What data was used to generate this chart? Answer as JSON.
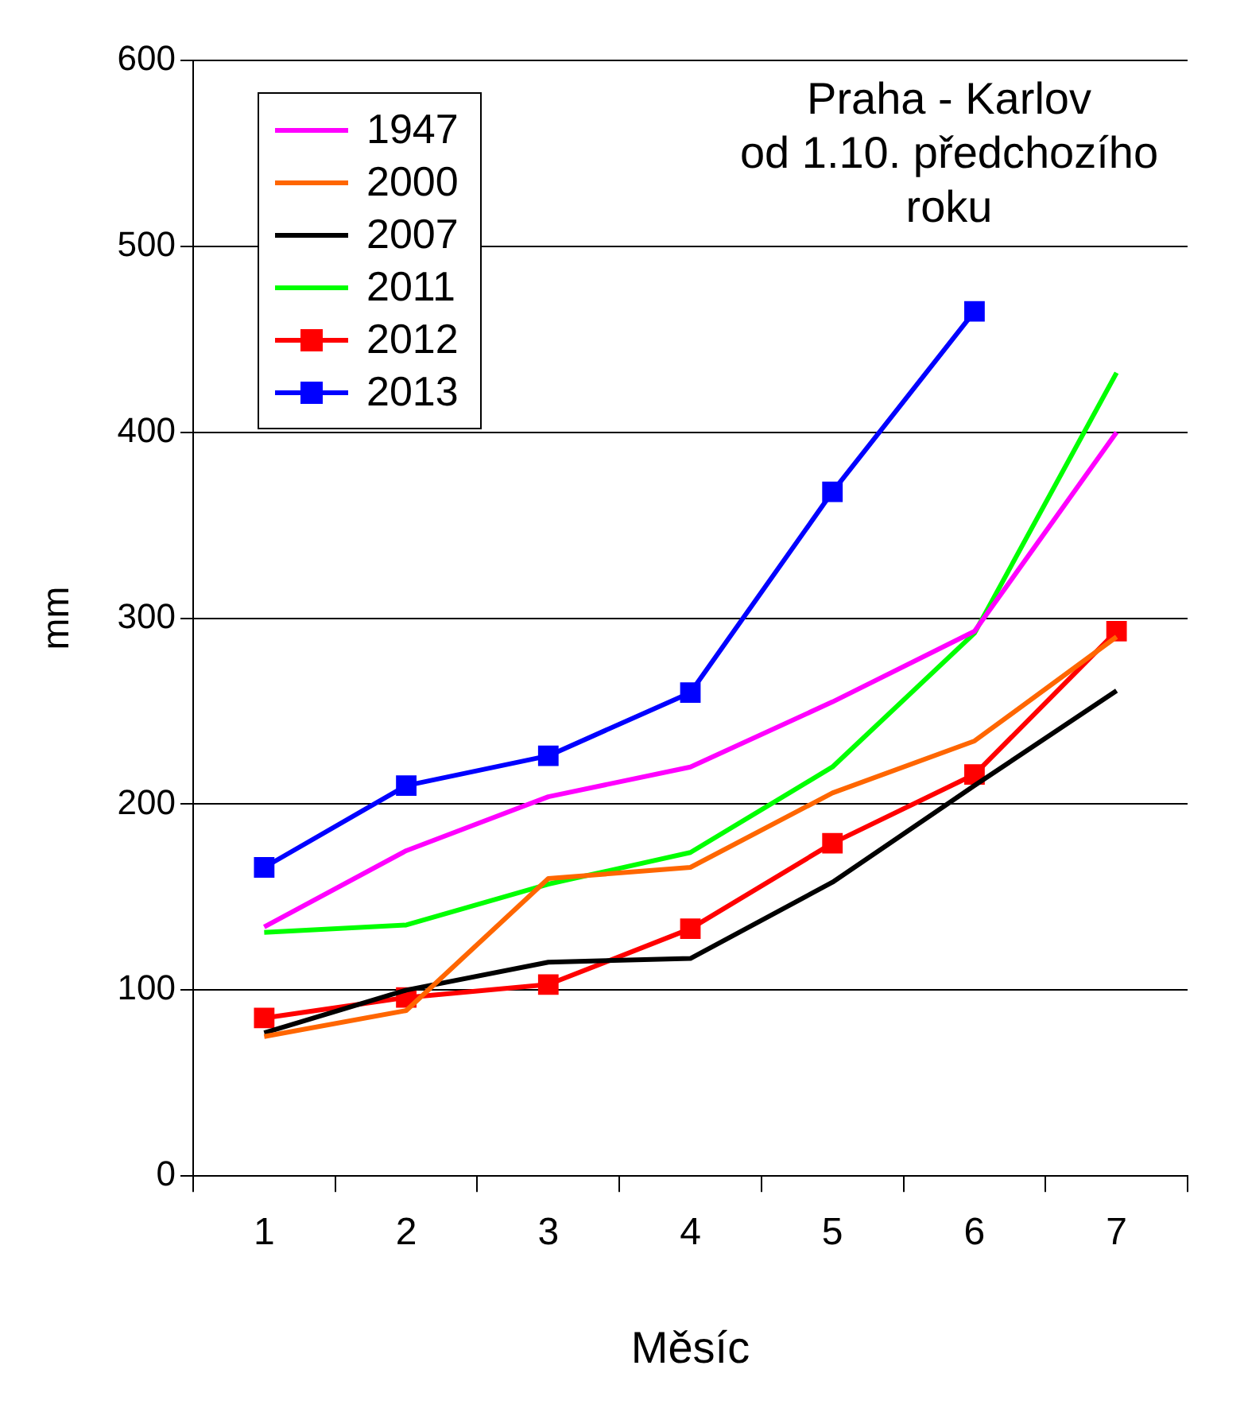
{
  "chart_data": {
    "type": "line",
    "title": "Praha - Karlov\nod 1.10. předchozího\nroku",
    "xlabel": "Měsíc",
    "ylabel": "mm",
    "categories": [
      "1",
      "2",
      "3",
      "4",
      "5",
      "6",
      "7"
    ],
    "series": [
      {
        "name": "1947",
        "color": "#ff00ff",
        "marker": "none",
        "values": [
          134,
          175,
          204,
          220,
          255,
          293,
          400
        ]
      },
      {
        "name": "2000",
        "color": "#ff6600",
        "marker": "none",
        "values": [
          75,
          89,
          160,
          166,
          206,
          234,
          290
        ]
      },
      {
        "name": "2007",
        "color": "#000000",
        "marker": "none",
        "values": [
          77,
          100,
          115,
          117,
          158,
          210,
          261
        ]
      },
      {
        "name": "2011",
        "color": "#00ff00",
        "marker": "none",
        "values": [
          131,
          135,
          157,
          174,
          220,
          292,
          432
        ]
      },
      {
        "name": "2012",
        "color": "#ff0000",
        "marker": "square",
        "values": [
          85,
          96,
          103,
          133,
          179,
          216,
          293
        ]
      },
      {
        "name": "2013",
        "color": "#0000ff",
        "marker": "square",
        "values": [
          166,
          210,
          226,
          260,
          368,
          465,
          null
        ]
      }
    ],
    "ylim": [
      0,
      600
    ],
    "yticks": [
      0,
      100,
      200,
      300,
      400,
      500,
      600
    ],
    "grid": "y",
    "legend": "top left",
    "line_style": "solid"
  }
}
